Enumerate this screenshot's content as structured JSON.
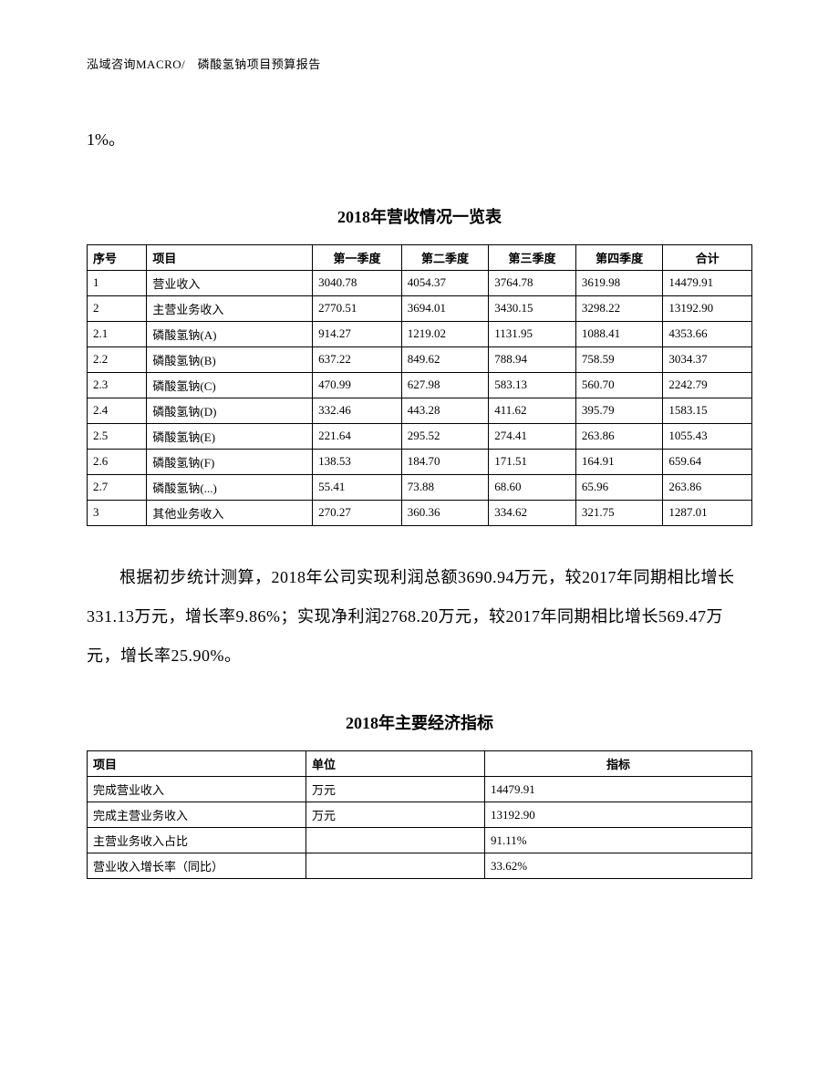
{
  "header": "泓域咨询MACRO/　磷酸氢钠项目预算报告",
  "cont_text": "1%。",
  "table1": {
    "title": "2018年营收情况一览表",
    "columns": [
      "序号",
      "项目",
      "第一季度",
      "第二季度",
      "第三季度",
      "第四季度",
      "合计"
    ],
    "rows": [
      [
        "1",
        "营业收入",
        "3040.78",
        "4054.37",
        "3764.78",
        "3619.98",
        "14479.91"
      ],
      [
        "2",
        "主营业务收入",
        "2770.51",
        "3694.01",
        "3430.15",
        "3298.22",
        "13192.90"
      ],
      [
        "2.1",
        "磷酸氢钠(A)",
        "914.27",
        "1219.02",
        "1131.95",
        "1088.41",
        "4353.66"
      ],
      [
        "2.2",
        "磷酸氢钠(B)",
        "637.22",
        "849.62",
        "788.94",
        "758.59",
        "3034.37"
      ],
      [
        "2.3",
        "磷酸氢钠(C)",
        "470.99",
        "627.98",
        "583.13",
        "560.70",
        "2242.79"
      ],
      [
        "2.4",
        "磷酸氢钠(D)",
        "332.46",
        "443.28",
        "411.62",
        "395.79",
        "1583.15"
      ],
      [
        "2.5",
        "磷酸氢钠(E)",
        "221.64",
        "295.52",
        "274.41",
        "263.86",
        "1055.43"
      ],
      [
        "2.6",
        "磷酸氢钠(F)",
        "138.53",
        "184.70",
        "171.51",
        "164.91",
        "659.64"
      ],
      [
        "2.7",
        "磷酸氢钠(...)",
        "55.41",
        "73.88",
        "68.60",
        "65.96",
        "263.86"
      ],
      [
        "3",
        "其他业务收入",
        "270.27",
        "360.36",
        "334.62",
        "321.75",
        "1287.01"
      ]
    ]
  },
  "paragraph": "根据初步统计测算，2018年公司实现利润总额3690.94万元，较2017年同期相比增长331.13万元，增长率9.86%；实现净利润2768.20万元，较2017年同期相比增长569.47万元，增长率25.90%。",
  "table2": {
    "title": "2018年主要经济指标",
    "columns": [
      "项目",
      "单位",
      "指标"
    ],
    "rows": [
      [
        "完成营业收入",
        "万元",
        "14479.91"
      ],
      [
        "完成主营业务收入",
        "万元",
        "13192.90"
      ],
      [
        "主营业务收入占比",
        "",
        "91.11%"
      ],
      [
        "营业收入增长率（同比）",
        "",
        "33.62%"
      ]
    ]
  }
}
